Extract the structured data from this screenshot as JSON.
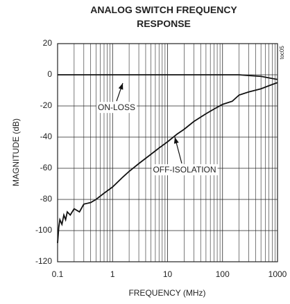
{
  "chart_data": {
    "type": "line",
    "title": "ANALOG SWITCH FREQUENCY RESPONSE",
    "x_label": "FREQUENCY (MHz)",
    "y_label": "MAGNITUDE (dB)",
    "note": "toc05",
    "x_scale": "log",
    "grid": true,
    "x": [
      0.1,
      0.105,
      0.11,
      0.12,
      0.13,
      0.14,
      0.15,
      0.17,
      0.2,
      0.25,
      0.3,
      0.4,
      0.5,
      0.7,
      1,
      1.5,
      2,
      3,
      5,
      7,
      10,
      15,
      20,
      30,
      50,
      70,
      100,
      150,
      200,
      300,
      500,
      700,
      1000
    ],
    "series": [
      {
        "name": "ON-LOSS",
        "color": "#111111",
        "values": [
          0,
          0,
          0,
          0,
          0,
          0,
          0,
          0,
          0,
          0,
          0,
          0,
          0,
          0,
          0,
          0,
          0,
          0,
          0,
          0,
          0,
          0,
          0,
          0,
          0,
          0,
          0,
          0,
          0,
          -0.5,
          -1,
          -2,
          -3
        ]
      },
      {
        "name": "OFF-ISOLATION",
        "color": "#111111",
        "values": [
          -108,
          -98,
          -93,
          -96,
          -90,
          -93,
          -88,
          -90,
          -86,
          -88,
          -83,
          -82,
          -80,
          -76,
          -72,
          -66,
          -62,
          -57,
          -51,
          -47,
          -43,
          -38,
          -35,
          -30,
          -25,
          -22,
          -19,
          -17,
          -13,
          -11,
          -9,
          -7,
          -5
        ]
      }
    ],
    "xlim": [
      0.1,
      1000
    ],
    "xticks": [
      0.1,
      1,
      10,
      100,
      1000
    ],
    "ylim": [
      -120,
      20
    ],
    "yticks": [
      20,
      0,
      -20,
      -40,
      -60,
      -80,
      -100,
      -120
    ]
  }
}
